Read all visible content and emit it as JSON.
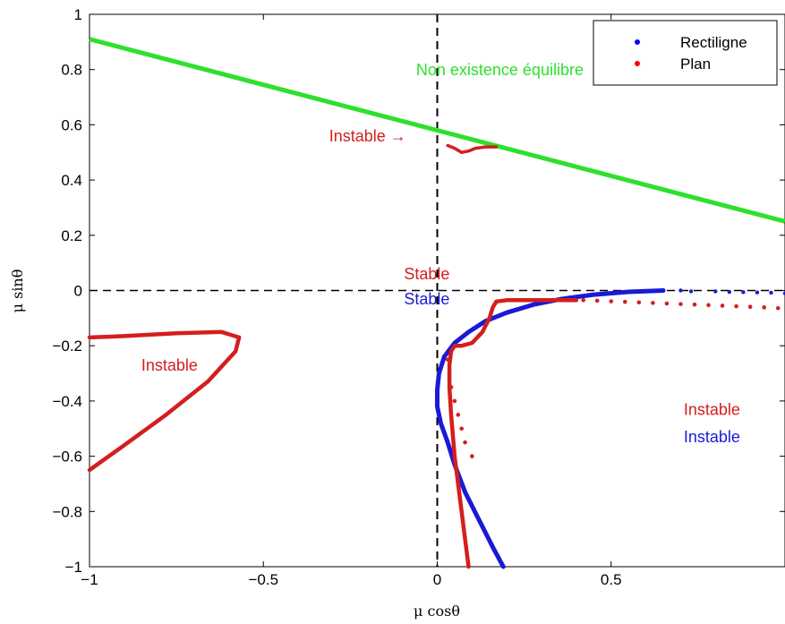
{
  "chart_data": {
    "type": "scatter",
    "title": "",
    "xlabel": "μ cosθ",
    "ylabel": "μ sinθ",
    "xlim": [
      -1,
      1
    ],
    "ylim": [
      -1,
      1
    ],
    "xticks": [
      -1,
      -0.5,
      0,
      0.5
    ],
    "xtick_labels": [
      "−1",
      "−0.5",
      "0",
      "0.5"
    ],
    "yticks": [
      1,
      0.8,
      0.6,
      0.4,
      0.2,
      0,
      -0.2,
      -0.4,
      -0.6,
      -0.8,
      -1
    ],
    "ytick_labels": [
      "1",
      "0.8",
      "0.6",
      "0.4",
      "0.2",
      "0",
      "−0.2",
      "−0.4",
      "−0.6",
      "−0.8",
      "−1"
    ],
    "grid": false,
    "legend_position": "top-right",
    "legend": [
      {
        "name": "Rectiligne",
        "color": "#0000ff"
      },
      {
        "name": "Plan",
        "color": "#ff0000"
      }
    ],
    "colors": {
      "rectiligne": "#1a1ad6",
      "plan": "#d41e1e",
      "boundary": "#2ee02e",
      "axes": "#000000"
    },
    "boundary_line": {
      "x": [
        -1,
        1
      ],
      "y": [
        0.91,
        0.25
      ]
    },
    "series": [
      {
        "name": "Rectiligne",
        "x": [
          0.19,
          0.16,
          0.12,
          0.08,
          0.05,
          0.03,
          0.01,
          0.0,
          0.0,
          0.005,
          0.02,
          0.05,
          0.09,
          0.14,
          0.2,
          0.28,
          0.36,
          0.45,
          0.55,
          0.65
        ],
        "y": [
          -1.0,
          -0.93,
          -0.83,
          -0.73,
          -0.63,
          -0.55,
          -0.48,
          -0.42,
          -0.36,
          -0.3,
          -0.24,
          -0.19,
          -0.15,
          -0.11,
          -0.08,
          -0.05,
          -0.03,
          -0.015,
          -0.005,
          0.0
        ],
        "tail_x": [
          0.7,
          0.73,
          0.8,
          0.84,
          0.88,
          0.92,
          0.96,
          1.0
        ],
        "tail_y": [
          0.0,
          -0.003,
          -0.003,
          -0.005,
          -0.006,
          -0.007,
          -0.008,
          -0.01
        ]
      },
      {
        "name": "Plan",
        "x": [
          0.09,
          0.07,
          0.05,
          0.04,
          0.035,
          0.035,
          0.04,
          0.05,
          0.07,
          0.1,
          0.13,
          0.15,
          0.16,
          0.17,
          0.2,
          0.25,
          0.3,
          0.35,
          0.4
        ],
        "y": [
          -1.0,
          -0.8,
          -0.6,
          -0.45,
          -0.35,
          -0.27,
          -0.22,
          -0.2,
          -0.2,
          -0.19,
          -0.15,
          -0.1,
          -0.06,
          -0.04,
          -0.035,
          -0.035,
          -0.035,
          -0.035,
          -0.035
        ],
        "tail_x": [
          0.42,
          0.46,
          0.5,
          0.54,
          0.58,
          0.62,
          0.66,
          0.7,
          0.74,
          0.78,
          0.82,
          0.86,
          0.9,
          0.94,
          0.98
        ],
        "tail_y": [
          -0.035,
          -0.037,
          -0.039,
          -0.041,
          -0.043,
          -0.045,
          -0.047,
          -0.049,
          -0.051,
          -0.053,
          -0.055,
          -0.057,
          -0.059,
          -0.061,
          -0.064
        ],
        "branch2_x": [
          0.03,
          0.035,
          0.04,
          0.05,
          0.06,
          0.07,
          0.08,
          0.1
        ],
        "branch2_y": [
          -0.25,
          -0.3,
          -0.35,
          -0.4,
          -0.45,
          -0.5,
          -0.55,
          -0.6
        ],
        "loop_x": [
          -1.0,
          -0.9,
          -0.75,
          -0.62,
          -0.57,
          -0.58,
          -0.66,
          -0.78,
          -0.9,
          -1.0
        ],
        "loop_y": [
          -0.17,
          -0.165,
          -0.155,
          -0.15,
          -0.17,
          -0.22,
          -0.33,
          -0.45,
          -0.56,
          -0.65
        ],
        "bump_x": [
          0.03,
          0.05,
          0.07,
          0.09,
          0.11,
          0.14,
          0.17
        ],
        "bump_y": [
          0.525,
          0.515,
          0.5,
          0.505,
          0.515,
          0.52,
          0.52
        ]
      }
    ],
    "annotations": [
      {
        "text": "Non existence équilibre",
        "color": "#2ee02e",
        "x": 0.18,
        "y": 0.78
      },
      {
        "text": "Instable →",
        "color": "#d41e1e",
        "x": -0.2,
        "y": 0.54
      },
      {
        "text": "Stable",
        "color": "#d41e1e",
        "x": -0.03,
        "y": 0.04
      },
      {
        "text": "Stable",
        "color": "#1a1ad6",
        "x": -0.03,
        "y": -0.05
      },
      {
        "text": "Instable",
        "color": "#d41e1e",
        "x": -0.77,
        "y": -0.29
      },
      {
        "text": "Instable",
        "color": "#d41e1e",
        "x": 0.79,
        "y": -0.45
      },
      {
        "text": "Instable",
        "color": "#1a1ad6",
        "x": 0.79,
        "y": -0.55
      }
    ]
  }
}
